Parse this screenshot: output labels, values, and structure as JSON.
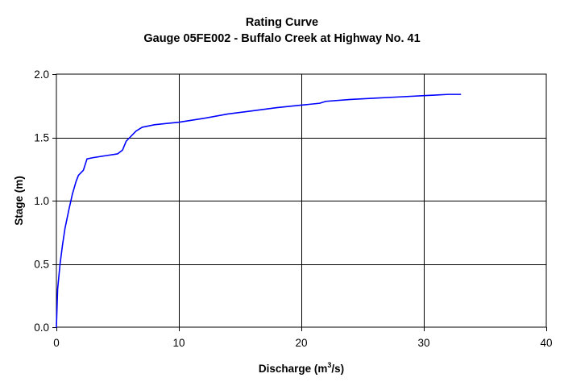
{
  "chart_data": {
    "type": "line",
    "title": "Rating Curve",
    "subtitle": "Gauge 05FE002 - Buffalo Creek at Highway No. 41",
    "xlabel": {
      "prefix": "Discharge (m",
      "superscript": "3",
      "suffix": "/s)"
    },
    "ylabel": "Stage (m)",
    "xlim": [
      0,
      40
    ],
    "ylim": [
      0,
      2.0
    ],
    "x_ticks": [
      0,
      10,
      20,
      30,
      40
    ],
    "x_tick_labels": [
      "0",
      "10",
      "20",
      "30",
      "40"
    ],
    "y_ticks": [
      0,
      0.5,
      1.0,
      1.5,
      2.0
    ],
    "y_tick_labels": [
      "0.0",
      "0.5",
      "1.0",
      "1.5",
      "2.0"
    ],
    "grid": true,
    "legend": "none",
    "series": [
      {
        "color": "#0000ff",
        "x": [
          0,
          0.05,
          0.1,
          0.2,
          0.3,
          0.5,
          0.7,
          1.0,
          1.3,
          1.6,
          1.8,
          2.0,
          2.2,
          2.4,
          2.5,
          3.0,
          4.0,
          5.0,
          5.4,
          5.7,
          6.0,
          6.5,
          7.0,
          8.0,
          9.0,
          10.0,
          12.0,
          14.0,
          16.0,
          18.0,
          20.0,
          21.5,
          22.0,
          24.0,
          26.0,
          28.0,
          30.0,
          31.0,
          32.0,
          33.0
        ],
        "y": [
          0.0,
          0.15,
          0.3,
          0.4,
          0.5,
          0.65,
          0.78,
          0.92,
          1.05,
          1.15,
          1.2,
          1.22,
          1.24,
          1.3,
          1.33,
          1.34,
          1.355,
          1.37,
          1.4,
          1.47,
          1.5,
          1.55,
          1.58,
          1.6,
          1.61,
          1.62,
          1.65,
          1.685,
          1.71,
          1.735,
          1.755,
          1.77,
          1.785,
          1.8,
          1.81,
          1.82,
          1.83,
          1.835,
          1.84,
          1.84
        ]
      }
    ]
  }
}
